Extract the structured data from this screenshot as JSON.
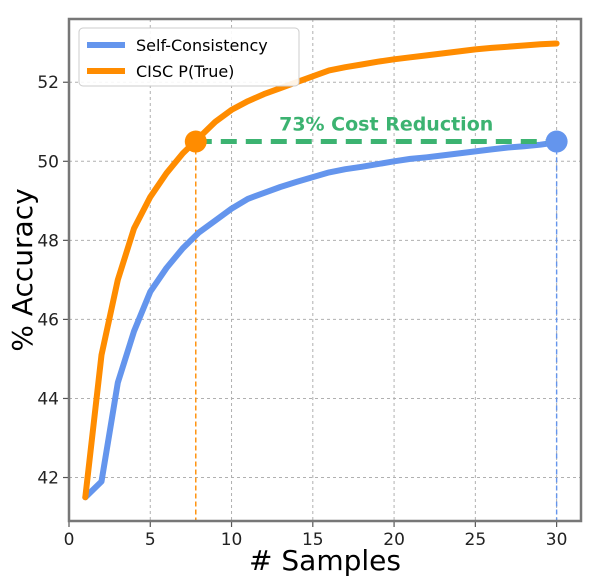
{
  "chart_data": {
    "type": "line",
    "title": "",
    "xlabel": "# Samples",
    "ylabel": "% Accuracy",
    "xlim": [
      0,
      31.5
    ],
    "ylim": [
      40.9,
      53.6
    ],
    "xticks": [
      0,
      5,
      10,
      15,
      20,
      25,
      30
    ],
    "yticks": [
      42,
      44,
      46,
      48,
      50,
      52
    ],
    "grid": true,
    "legend_position": "top-left",
    "series": [
      {
        "name": "Self-Consistency",
        "color": "#6495ED",
        "x": [
          1,
          2,
          3,
          4,
          5,
          6,
          7,
          8,
          9,
          10,
          11,
          12,
          13,
          14,
          15,
          16,
          17,
          18,
          19,
          20,
          21,
          22,
          23,
          24,
          25,
          26,
          27,
          28,
          29,
          30
        ],
        "y": [
          41.5,
          41.9,
          44.4,
          45.7,
          46.7,
          47.3,
          47.8,
          48.2,
          48.5,
          48.8,
          49.05,
          49.2,
          49.35,
          49.48,
          49.6,
          49.72,
          49.8,
          49.86,
          49.93,
          50.0,
          50.06,
          50.1,
          50.15,
          50.2,
          50.25,
          50.3,
          50.35,
          50.38,
          50.42,
          50.48
        ]
      },
      {
        "name": "CISC P(True)",
        "color": "#FF8C00",
        "x": [
          1,
          2,
          3,
          4,
          5,
          6,
          7,
          8,
          9,
          10,
          11,
          12,
          13,
          14,
          15,
          16,
          17,
          18,
          19,
          20,
          21,
          22,
          23,
          24,
          25,
          26,
          27,
          28,
          29,
          30
        ],
        "y": [
          41.5,
          45.1,
          47.0,
          48.3,
          49.1,
          49.7,
          50.2,
          50.6,
          51.0,
          51.3,
          51.52,
          51.7,
          51.85,
          52.0,
          52.15,
          52.3,
          52.38,
          52.45,
          52.52,
          52.58,
          52.63,
          52.68,
          52.73,
          52.78,
          52.83,
          52.87,
          52.9,
          52.93,
          52.96,
          52.98
        ]
      }
    ],
    "markers": [
      {
        "x": 7.8,
        "y": 50.5,
        "color": "#FF8C00"
      },
      {
        "x": 30,
        "y": 50.5,
        "color": "#6495ED"
      }
    ],
    "annotation": {
      "text": "73% Cost Reduction",
      "color": "#3CB371",
      "from_x": 7.8,
      "to_x": 30,
      "y": 50.5
    }
  }
}
